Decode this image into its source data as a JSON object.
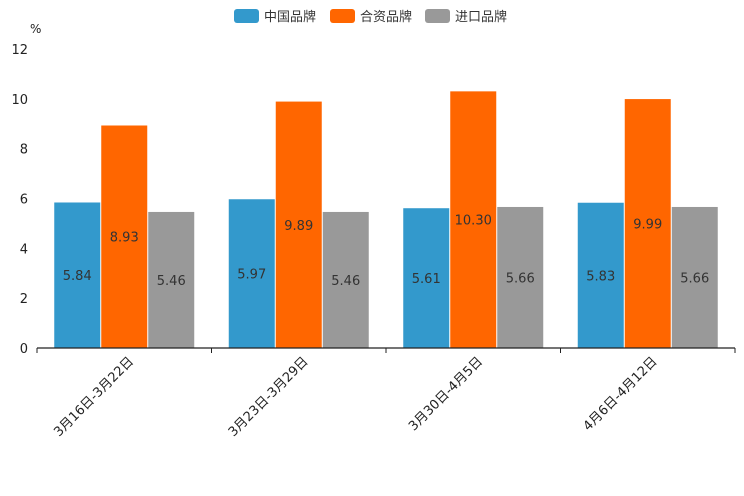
{
  "chart_data": {
    "type": "bar",
    "title": "",
    "unit": "%",
    "xlabel": "",
    "ylabel": "%",
    "ylim": [
      0,
      12
    ],
    "yticks": [
      0,
      2,
      4,
      6,
      8,
      10,
      12
    ],
    "grid": false,
    "legend_position": "top-center",
    "categories": [
      "3月16日-3月22日",
      "3月23日-3月29日",
      "3月30日-4月5日",
      "4月6日-4月12日"
    ],
    "series": [
      {
        "name": "中国品牌",
        "color": "#3399cc",
        "values": [
          5.84,
          5.97,
          5.61,
          5.83
        ],
        "labels": [
          "5.84",
          "5.97",
          "5.61",
          "5.83"
        ]
      },
      {
        "name": "合资品牌",
        "color": "#ff6600",
        "values": [
          8.93,
          9.89,
          10.3,
          9.99
        ],
        "labels": [
          "8.93",
          "9.89",
          "10.30",
          "9.99"
        ]
      },
      {
        "name": "进口品牌",
        "color": "#999999",
        "values": [
          5.46,
          5.46,
          5.66,
          5.66
        ],
        "labels": [
          "5.46",
          "5.46",
          "5.66",
          "5.66"
        ]
      }
    ]
  }
}
